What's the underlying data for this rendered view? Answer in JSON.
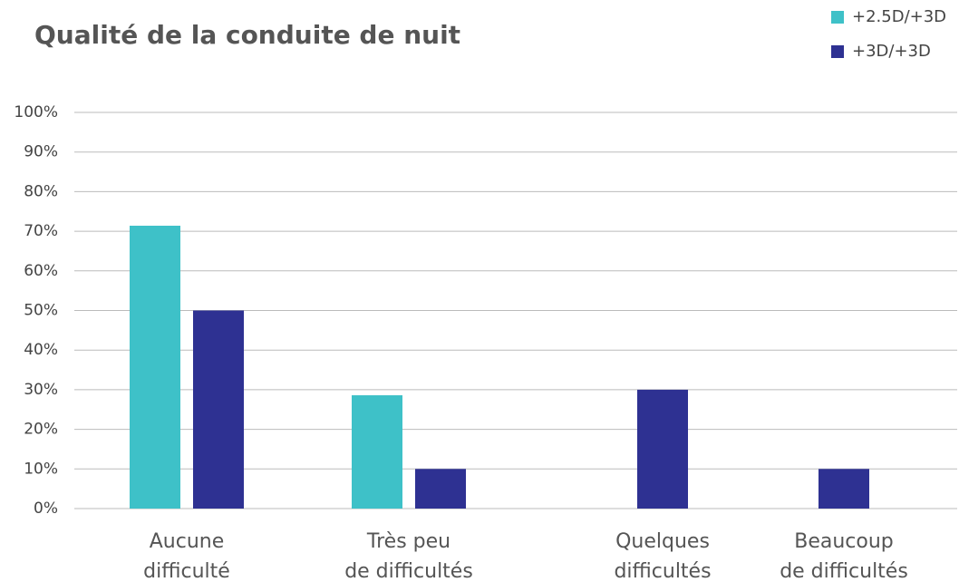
{
  "chart_data": {
    "type": "bar",
    "title": "Qualité de la conduite de nuit",
    "categories": [
      [
        "Aucune",
        "difficulté"
      ],
      [
        "Très peu",
        "de difficultés"
      ],
      [
        "Quelques",
        "difficultés"
      ],
      [
        "Beaucoup",
        "de difficultés"
      ]
    ],
    "series": [
      {
        "name": "+2.5D/+3D",
        "color": "#3ec1c8",
        "values": [
          71.4,
          28.6,
          null,
          null
        ]
      },
      {
        "name": "+3D/+3D",
        "color": "#2e3192",
        "values": [
          50,
          10,
          30,
          10
        ]
      }
    ],
    "ylim": [
      0,
      100
    ],
    "yticks": [
      {
        "value": 0,
        "label": "0%"
      },
      {
        "value": 10,
        "label": "10%"
      },
      {
        "value": 20,
        "label": "20%"
      },
      {
        "value": 30,
        "label": "30%"
      },
      {
        "value": 40,
        "label": "40%"
      },
      {
        "value": 50,
        "label": "50%"
      },
      {
        "value": 60,
        "label": "60%"
      },
      {
        "value": 70,
        "label": "70%"
      },
      {
        "value": 80,
        "label": "80%"
      },
      {
        "value": 90,
        "label": "90%"
      },
      {
        "value": 100,
        "label": "100%"
      }
    ],
    "grid": true,
    "legend": "top-right"
  }
}
